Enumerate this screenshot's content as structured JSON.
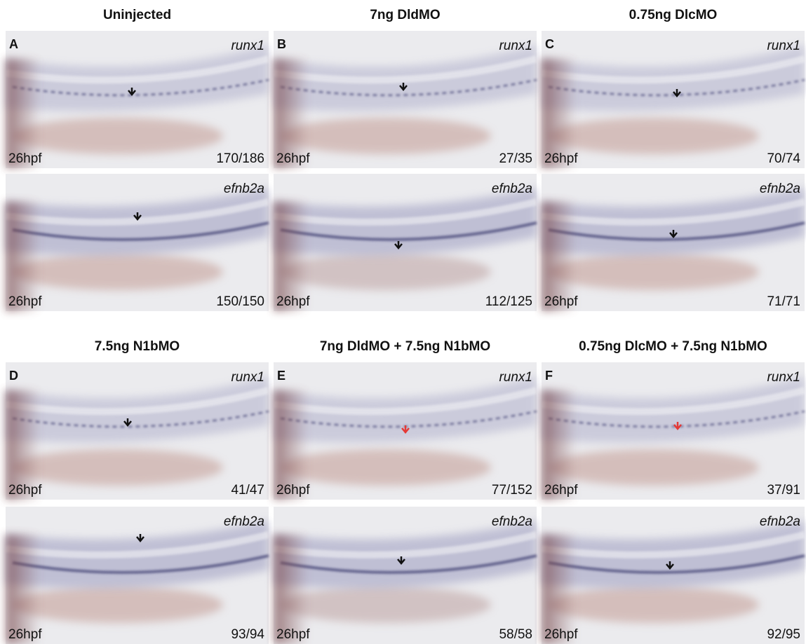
{
  "groups": [
    {
      "title": "Uninjected",
      "letter": "A",
      "images": [
        {
          "gene": "runx1",
          "stage": "26hpf",
          "count": "170/186"
        },
        {
          "gene": "efnb2a",
          "stage": "26hpf",
          "count": "150/150"
        }
      ]
    },
    {
      "title": "7ng DldMO",
      "letter": "B",
      "images": [
        {
          "gene": "runx1",
          "stage": "26hpf",
          "count": "27/35"
        },
        {
          "gene": "efnb2a",
          "stage": "26hpf",
          "count": "112/125"
        }
      ]
    },
    {
      "title": "0.75ng DlcMO",
      "letter": "C",
      "images": [
        {
          "gene": "runx1",
          "stage": "26hpf",
          "count": "70/74"
        },
        {
          "gene": "efnb2a",
          "stage": "26hpf",
          "count": "71/71"
        }
      ]
    },
    {
      "title": "7.5ng N1bMO",
      "letter": "D",
      "images": [
        {
          "gene": "runx1",
          "stage": "26hpf",
          "count": "41/47"
        },
        {
          "gene": "efnb2a",
          "stage": "26hpf",
          "count": "93/94"
        }
      ]
    },
    {
      "title": "7ng DldMO + 7.5ng N1bMO",
      "letter": "E",
      "images": [
        {
          "gene": "runx1",
          "stage": "26hpf",
          "count": "77/152"
        },
        {
          "gene": "efnb2a",
          "stage": "26hpf",
          "count": "58/58"
        }
      ]
    },
    {
      "title": "0.75ng DlcMO + 7.5ng N1bMO",
      "letter": "F",
      "images": [
        {
          "gene": "runx1",
          "stage": "26hpf",
          "count": "37/91"
        },
        {
          "gene": "efnb2a",
          "stage": "26hpf",
          "count": "92/95"
        }
      ]
    }
  ]
}
